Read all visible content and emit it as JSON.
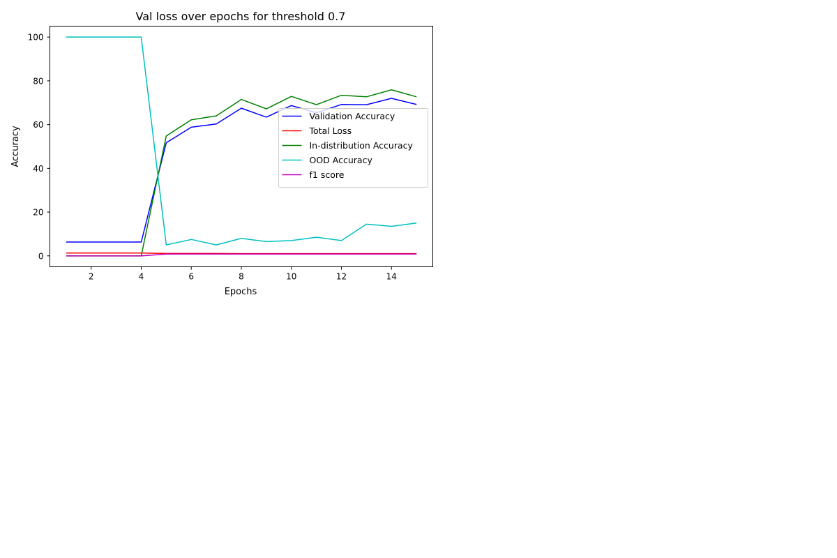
{
  "chart_data": {
    "type": "line",
    "title": "Val loss over epochs for threshold 0.7",
    "xlabel": "Epochs",
    "ylabel": "Accuracy",
    "xlim": [
      0.35,
      15.65
    ],
    "ylim": [
      -5,
      105
    ],
    "xticks": [
      2,
      4,
      6,
      8,
      10,
      12,
      14
    ],
    "yticks": [
      0,
      20,
      40,
      60,
      80,
      100
    ],
    "grid": false,
    "legend_position": "center-right",
    "x": [
      1,
      2,
      3,
      4,
      5,
      6,
      7,
      8,
      9,
      10,
      11,
      12,
      13,
      14,
      15
    ],
    "series": [
      {
        "name": "Validation Accuracy",
        "color": "#0000ff",
        "values": [
          6.3,
          6.3,
          6.3,
          6.3,
          51.7,
          58.8,
          60.3,
          67.5,
          63.4,
          68.7,
          65.4,
          69.2,
          69.1,
          72.0,
          69.2
        ]
      },
      {
        "name": "Total Loss",
        "color": "#ff0000",
        "values": [
          1.3,
          1.3,
          1.3,
          1.3,
          1.1,
          1.1,
          1.1,
          1.0,
          1.0,
          1.0,
          1.0,
          1.0,
          1.0,
          1.0,
          1.0
        ]
      },
      {
        "name": "In-distribution Accuracy",
        "color": "#008000",
        "values": [
          0.0,
          0.0,
          0.0,
          0.0,
          54.8,
          62.2,
          64.0,
          71.5,
          67.2,
          72.9,
          69.1,
          73.4,
          72.7,
          75.9,
          72.7
        ]
      },
      {
        "name": "OOD Accuracy",
        "color": "#00bfbf",
        "values": [
          100.0,
          100.0,
          100.0,
          100.0,
          5.0,
          7.5,
          5.0,
          8.0,
          6.5,
          7.0,
          8.5,
          7.0,
          14.5,
          13.5,
          15.0
        ]
      },
      {
        "name": "f1 score",
        "color": "#bf00bf",
        "values": [
          0.0,
          0.0,
          0.0,
          0.0,
          0.8,
          0.8,
          0.8,
          0.8,
          0.8,
          0.8,
          0.8,
          0.8,
          0.8,
          0.8,
          0.8
        ]
      }
    ]
  }
}
